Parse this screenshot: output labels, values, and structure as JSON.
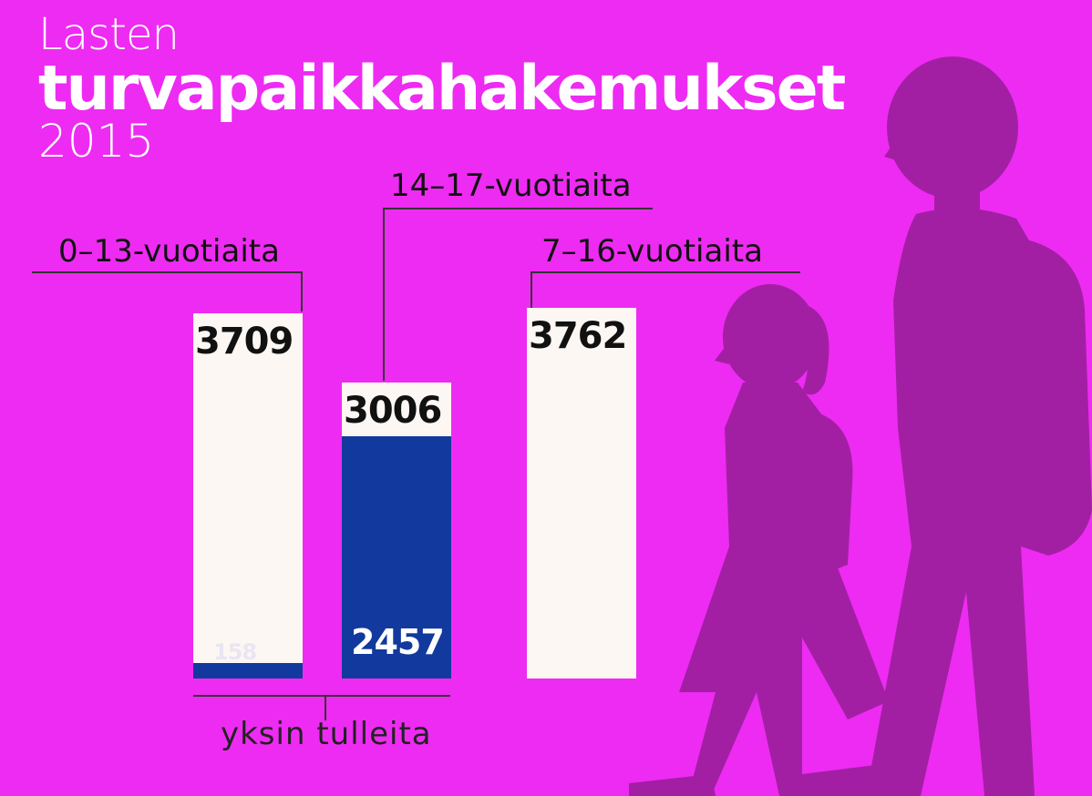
{
  "title": {
    "line1": "Lasten",
    "line2": "turvapaikkahakemukset",
    "line3": "2015"
  },
  "colors": {
    "background": "#ee2bf2",
    "bar_total": "#fdf7f4",
    "bar_alone": "#12399d",
    "silhouette": "#a21fa4"
  },
  "group_label": "yksin tulleita",
  "chart_data": {
    "type": "bar",
    "categories": [
      "0–13-vuotiaita",
      "14–17-vuotiaita",
      "7–16-vuotiaita"
    ],
    "series": [
      {
        "values": [
          3709,
          3006,
          3762
        ],
        "value_labels": [
          "3709",
          "3006",
          "3762"
        ]
      },
      {
        "name": "yksin tulleita",
        "values": [
          158,
          2457,
          null
        ],
        "value_labels": [
          "158",
          "2457",
          ""
        ]
      }
    ],
    "ylim": [
      0,
      3762
    ]
  }
}
